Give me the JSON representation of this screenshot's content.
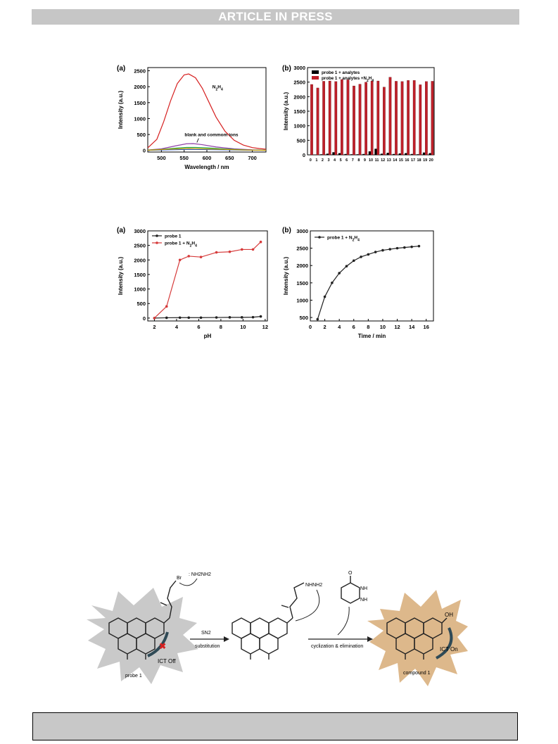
{
  "banner": {
    "text": "ARTICLE IN PRESS"
  },
  "chart_data": [
    {
      "id": "fig1a",
      "panel": "(a)",
      "type": "line",
      "xlabel": "Wavelength / nm",
      "ylabel": "Intensity (a.u.)",
      "xlim": [
        470,
        730
      ],
      "ylim": [
        -50,
        2600
      ],
      "xticks": [
        500,
        550,
        600,
        650,
        700
      ],
      "yticks": [
        0,
        500,
        1000,
        1500,
        2000,
        2500
      ],
      "annotations": [
        "N2H4",
        "blank and commom ions"
      ],
      "series": [
        {
          "color": "#d62020",
          "x": [
            470,
            490,
            505,
            520,
            535,
            550,
            560,
            575,
            590,
            605,
            620,
            640,
            660,
            680,
            700,
            715,
            730
          ],
          "y": [
            80,
            350,
            900,
            1550,
            2100,
            2370,
            2400,
            2280,
            1950,
            1500,
            1050,
            600,
            320,
            170,
            90,
            60,
            40
          ]
        },
        {
          "color": "#8e3fa8",
          "x": [
            470,
            500,
            530,
            555,
            570,
            590,
            620,
            660,
            700,
            730
          ],
          "y": [
            15,
            50,
            140,
            210,
            215,
            180,
            110,
            50,
            20,
            10
          ]
        },
        {
          "color": "#1a9e3a",
          "x": [
            470,
            500,
            530,
            555,
            575,
            600,
            640,
            690,
            730
          ],
          "y": [
            10,
            30,
            70,
            95,
            95,
            80,
            45,
            15,
            8
          ]
        },
        {
          "color": "#2c5bd6",
          "x": [
            470,
            520,
            560,
            620,
            680,
            730
          ],
          "y": [
            5,
            20,
            35,
            25,
            10,
            5
          ]
        },
        {
          "color": "#c8a000",
          "x": [
            470,
            520,
            560,
            620,
            680,
            730
          ],
          "y": [
            8,
            40,
            60,
            40,
            15,
            6
          ]
        }
      ]
    },
    {
      "id": "fig1b",
      "panel": "(b)",
      "type": "bar",
      "ylabel": "Intensity (a.u.)",
      "ylim": [
        0,
        3000
      ],
      "yticks": [
        0,
        500,
        1000,
        1500,
        2000,
        2500,
        3000
      ],
      "categories": [
        "0",
        "1",
        "2",
        "3",
        "4",
        "5",
        "6",
        "7",
        "8",
        "9",
        "10",
        "11",
        "12",
        "13",
        "14",
        "15",
        "16",
        "17",
        "18",
        "19",
        "20"
      ],
      "series": [
        {
          "name": "probe 1 + analytes",
          "color": "#000000",
          "values": [
            10,
            10,
            20,
            40,
            90,
            60,
            30,
            20,
            20,
            30,
            120,
            210,
            40,
            70,
            30,
            50,
            60,
            30,
            20,
            80,
            60
          ]
        },
        {
          "name": "probe 1 + analytes +N2H4",
          "color": "#c0202a",
          "values": [
            2420,
            2300,
            2530,
            2540,
            2520,
            2590,
            2580,
            2370,
            2430,
            2500,
            2540,
            2540,
            2330,
            2670,
            2530,
            2520,
            2560,
            2560,
            2410,
            2520,
            2530
          ]
        }
      ]
    },
    {
      "id": "fig2a",
      "panel": "(a)",
      "type": "line",
      "xlabel": "pH",
      "ylabel": "Intensity (a.u.)",
      "xlim": [
        1.4,
        12.2
      ],
      "ylim": [
        -100,
        3000
      ],
      "xticks": [
        2,
        4,
        6,
        8,
        10,
        12
      ],
      "yticks": [
        0,
        500,
        1000,
        1500,
        2000,
        2500,
        3000
      ],
      "series": [
        {
          "name": "probe 1",
          "color": "#222222",
          "x": [
            2,
            3.1,
            4.3,
            5.1,
            6.2,
            7.6,
            8.8,
            9.9,
            10.9,
            11.6
          ],
          "y": [
            0,
            10,
            15,
            15,
            15,
            20,
            25,
            25,
            30,
            55
          ]
        },
        {
          "name": "probe 1 + N2H4",
          "color": "#d63a3a",
          "x": [
            2,
            3.1,
            4.3,
            5.1,
            6.2,
            7.6,
            8.8,
            9.9,
            10.9,
            11.6
          ],
          "y": [
            0,
            400,
            2000,
            2130,
            2100,
            2260,
            2280,
            2360,
            2360,
            2620
          ]
        }
      ]
    },
    {
      "id": "fig2b",
      "panel": "(b)",
      "type": "line",
      "xlabel": "Time / min",
      "ylabel": "Intensity (a.u.)",
      "xlim": [
        0,
        17
      ],
      "ylim": [
        400,
        3000
      ],
      "xticks": [
        0,
        2,
        4,
        6,
        8,
        10,
        12,
        14,
        16
      ],
      "yticks": [
        500,
        1000,
        1500,
        2000,
        2500,
        3000
      ],
      "series": [
        {
          "name": "probe 1 + N2H4",
          "color": "#222222",
          "x": [
            1,
            2,
            3,
            4,
            5,
            6,
            7,
            8,
            9,
            10,
            11,
            12,
            13,
            14,
            15
          ],
          "y": [
            450,
            1100,
            1500,
            1780,
            1980,
            2140,
            2250,
            2320,
            2390,
            2440,
            2470,
            2500,
            2520,
            2540,
            2560
          ]
        }
      ]
    }
  ],
  "scheme": {
    "reagent_top": ": NH2NH2",
    "reagent_mid": "NHNH2",
    "step1_top": "SN2",
    "step1_bottom": "substitution",
    "step2": "cyclization & elimination",
    "state_left": "ICT Off",
    "state_right": "ICT On",
    "label_left": "probe 1",
    "label_right": "compound 1",
    "br_label": "Br",
    "oh_label": "OH",
    "nh_labels": [
      "NH",
      "NH"
    ],
    "o_label": "O"
  }
}
